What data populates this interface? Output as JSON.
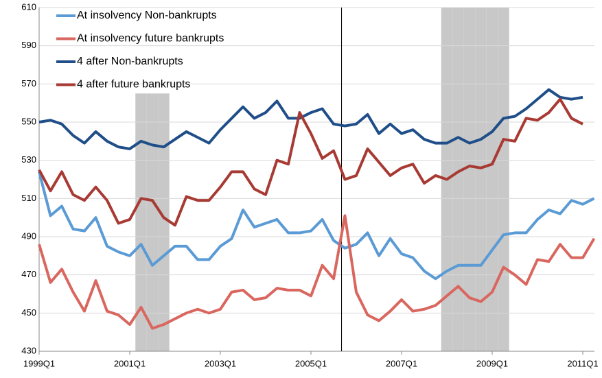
{
  "chart_data": {
    "type": "line",
    "categories": [
      "1999Q1",
      null,
      null,
      null,
      null,
      null,
      null,
      null,
      "2001Q1",
      null,
      null,
      null,
      null,
      null,
      null,
      null,
      "2003Q1",
      null,
      null,
      null,
      null,
      null,
      null,
      null,
      "2005Q1",
      null,
      null,
      null,
      null,
      null,
      null,
      null,
      "2007Q1",
      null,
      null,
      null,
      null,
      null,
      null,
      null,
      "2009Q1",
      null,
      null,
      null,
      null,
      null,
      null,
      null,
      "2011Q1",
      null
    ],
    "ylim": [
      430,
      610
    ],
    "yticks": [
      430,
      450,
      470,
      490,
      510,
      530,
      550,
      570,
      590,
      610
    ],
    "grid": true,
    "legend": "top-left",
    "bands": {
      "color": "#c8c8c8",
      "values": [
        null,
        null,
        null,
        null,
        null,
        null,
        null,
        null,
        null,
        565,
        565,
        565,
        null,
        null,
        null,
        null,
        null,
        null,
        null,
        null,
        null,
        null,
        null,
        null,
        null,
        null,
        null,
        null,
        null,
        null,
        null,
        null,
        null,
        null,
        null,
        null,
        610,
        610,
        610,
        610,
        610,
        610,
        null,
        null,
        null,
        null,
        null,
        null,
        null,
        null
      ]
    },
    "vertical_line_x": 26.7,
    "series": [
      {
        "name": "At insolvency Non-bankrupts",
        "color": "#5b9bd5",
        "values": [
          524,
          501,
          506,
          494,
          493,
          500,
          485,
          482,
          480,
          486,
          475,
          480,
          485,
          485,
          478,
          478,
          485,
          489,
          504,
          495,
          497,
          499,
          492,
          492,
          493,
          499,
          488,
          484,
          486,
          492,
          480,
          489,
          481,
          479,
          472,
          468,
          472,
          475,
          475,
          475,
          483,
          491,
          492,
          492,
          499,
          504,
          502,
          509,
          507,
          510
        ]
      },
      {
        "name": "At insolvency future bankrupts",
        "color": "#d9675f",
        "values": [
          486,
          466,
          473,
          461,
          451,
          467,
          451,
          449,
          444,
          453,
          442,
          444,
          447,
          450,
          452,
          450,
          452,
          461,
          462,
          457,
          458,
          463,
          462,
          462,
          459,
          475,
          468,
          501,
          461,
          449,
          446,
          451,
          457,
          451,
          452,
          454,
          459,
          464,
          458,
          456,
          461,
          474,
          470,
          465,
          478,
          477,
          486,
          479,
          479,
          489
        ]
      },
      {
        "name": "4 after Non-bankrupts",
        "color": "#1f4e89",
        "values": [
          550,
          551,
          549,
          543,
          539,
          545,
          540,
          537,
          536,
          540,
          538,
          537,
          541,
          545,
          542,
          539,
          546,
          552,
          558,
          552,
          555,
          561,
          552,
          552,
          555,
          557,
          549,
          548,
          549,
          554,
          544,
          549,
          544,
          546,
          541,
          539,
          539,
          542,
          539,
          541,
          545,
          552,
          553,
          557,
          562,
          567,
          563,
          562,
          563,
          null
        ]
      },
      {
        "name": "4 after future bankrupts",
        "color": "#a83a34",
        "values": [
          525,
          514,
          524,
          512,
          509,
          516,
          509,
          497,
          499,
          510,
          509,
          500,
          496,
          511,
          509,
          509,
          516,
          524,
          524,
          515,
          512,
          530,
          528,
          555,
          544,
          531,
          535,
          520,
          522,
          536,
          529,
          522,
          526,
          528,
          518,
          522,
          520,
          524,
          527,
          526,
          528,
          541,
          540,
          552,
          551,
          555,
          562,
          552,
          549,
          null
        ]
      }
    ]
  }
}
